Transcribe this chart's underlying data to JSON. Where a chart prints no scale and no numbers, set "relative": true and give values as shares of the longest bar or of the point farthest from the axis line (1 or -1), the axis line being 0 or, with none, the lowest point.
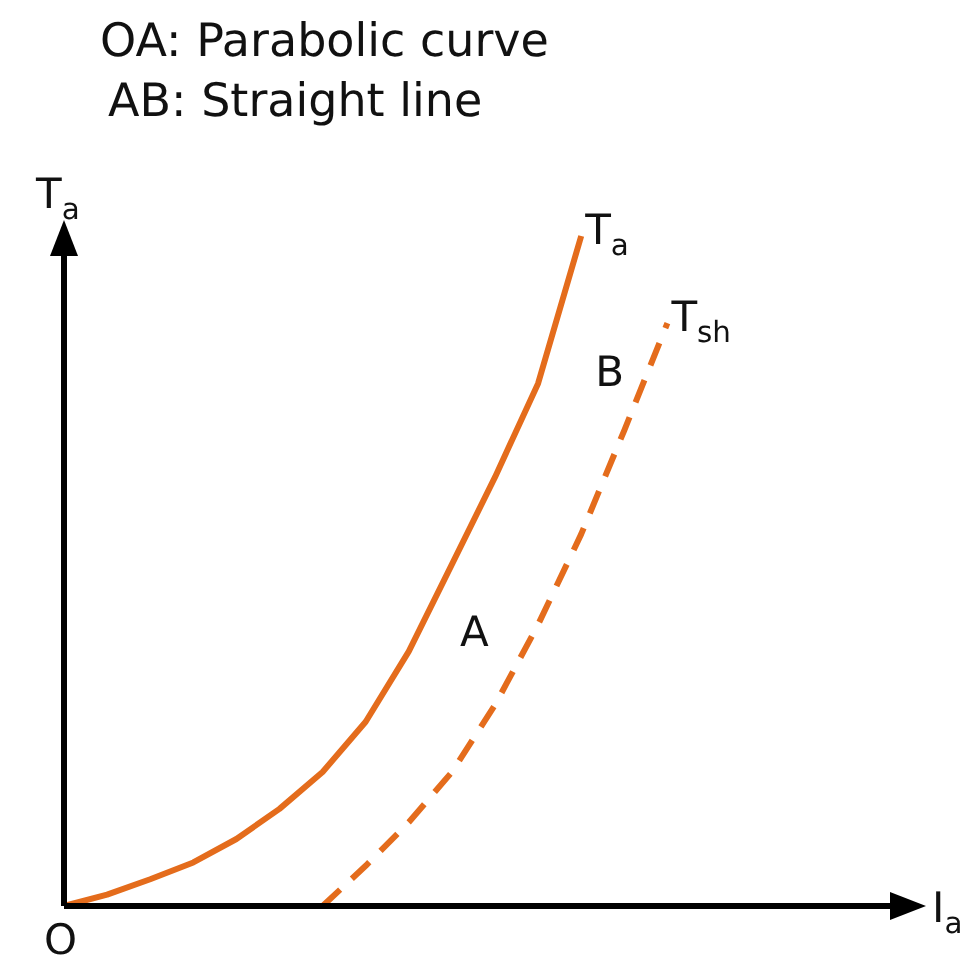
{
  "chart_data": {
    "type": "line",
    "title": "OA: Parabolic curve",
    "subtitle": "AB: Straight line",
    "xlabel": "I$_{a}$",
    "ylabel": "T$_{a}$",
    "relative": true,
    "marker": "none",
    "categories": [
      null,
      null,
      null,
      null,
      null,
      null,
      null,
      null,
      null,
      null,
      null,
      null,
      null,
      null,
      null,
      null,
      null,
      null,
      null,
      null,
      null
    ],
    "series": [
      {
        "name": "T$_{a}$",
        "color": "#e46c1c",
        "line_style": "solid",
        "values": [
          0,
          0.017,
          0.04,
          0.065,
          0.1,
          0.145,
          0.2,
          0.275,
          0.38,
          0.51,
          0.64,
          0.78,
          1.0,
          null,
          null,
          null,
          null,
          null,
          null,
          null,
          null
        ]
      },
      {
        "name": "T$_{sh}$",
        "color": "#e46c1c",
        "line_style": "dashed",
        "values": [
          null,
          null,
          null,
          null,
          null,
          null,
          0,
          0.06,
          0.125,
          0.2,
          0.3,
          0.42,
          0.555,
          0.71,
          0.87,
          null,
          null,
          null,
          null,
          null,
          null
        ]
      }
    ],
    "annotations": [
      "O",
      "A",
      "B"
    ]
  }
}
